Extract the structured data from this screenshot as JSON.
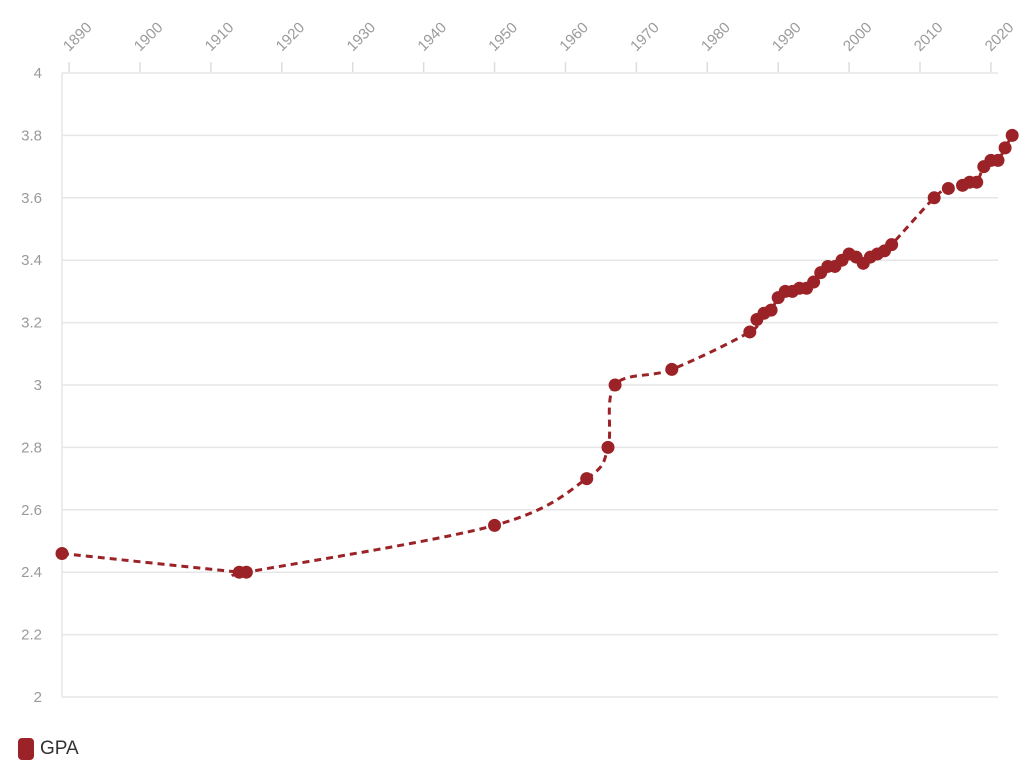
{
  "chart_data": {
    "type": "line",
    "title": "",
    "xlabel": "",
    "ylabel": "",
    "xlim": [
      1889,
      2021
    ],
    "ylim": [
      2,
      4
    ],
    "x_ticks": [
      1890,
      1900,
      1910,
      1920,
      1930,
      1940,
      1950,
      1960,
      1970,
      1980,
      1990,
      2000,
      2010,
      2020
    ],
    "y_ticks": [
      2,
      2.2,
      2.4,
      2.6,
      2.8,
      3,
      3.2,
      3.4,
      3.6,
      3.8,
      4
    ],
    "y_tick_labels": [
      "2",
      "2.2",
      "2.4",
      "2.6",
      "2.8",
      "3",
      "3.2",
      "3.4",
      "3.6",
      "3.8",
      "4"
    ],
    "grid": true,
    "legend_position": "bottom-left",
    "line_style": "dashed",
    "series": [
      {
        "name": "GPA",
        "color": "#9b2226",
        "points": [
          [
            1889,
            2.46
          ],
          [
            1914,
            2.4
          ],
          [
            1915,
            2.4
          ],
          [
            1950,
            2.55
          ],
          [
            1963,
            2.7
          ],
          [
            1966,
            2.8
          ],
          [
            1967,
            3.0
          ],
          [
            1975,
            3.05
          ],
          [
            1986,
            3.17
          ],
          [
            1987,
            3.21
          ],
          [
            1988,
            3.23
          ],
          [
            1989,
            3.24
          ],
          [
            1990,
            3.28
          ],
          [
            1991,
            3.3
          ],
          [
            1992,
            3.3
          ],
          [
            1993,
            3.31
          ],
          [
            1994,
            3.31
          ],
          [
            1995,
            3.33
          ],
          [
            1996,
            3.36
          ],
          [
            1997,
            3.38
          ],
          [
            1998,
            3.38
          ],
          [
            1999,
            3.4
          ],
          [
            2000,
            3.42
          ],
          [
            2001,
            3.41
          ],
          [
            2002,
            3.39
          ],
          [
            2003,
            3.41
          ],
          [
            2004,
            3.42
          ],
          [
            2005,
            3.43
          ],
          [
            2006,
            3.45
          ],
          [
            2012,
            3.6
          ],
          [
            2014,
            3.63
          ],
          [
            2016,
            3.64
          ],
          [
            2017,
            3.65
          ],
          [
            2018,
            3.65
          ],
          [
            2019,
            3.7
          ],
          [
            2020,
            3.72
          ],
          [
            2021,
            3.72
          ],
          [
            2022,
            3.76
          ],
          [
            2023,
            3.8
          ]
        ]
      }
    ]
  },
  "legend": {
    "label": "GPA",
    "color": "#9b2226"
  }
}
